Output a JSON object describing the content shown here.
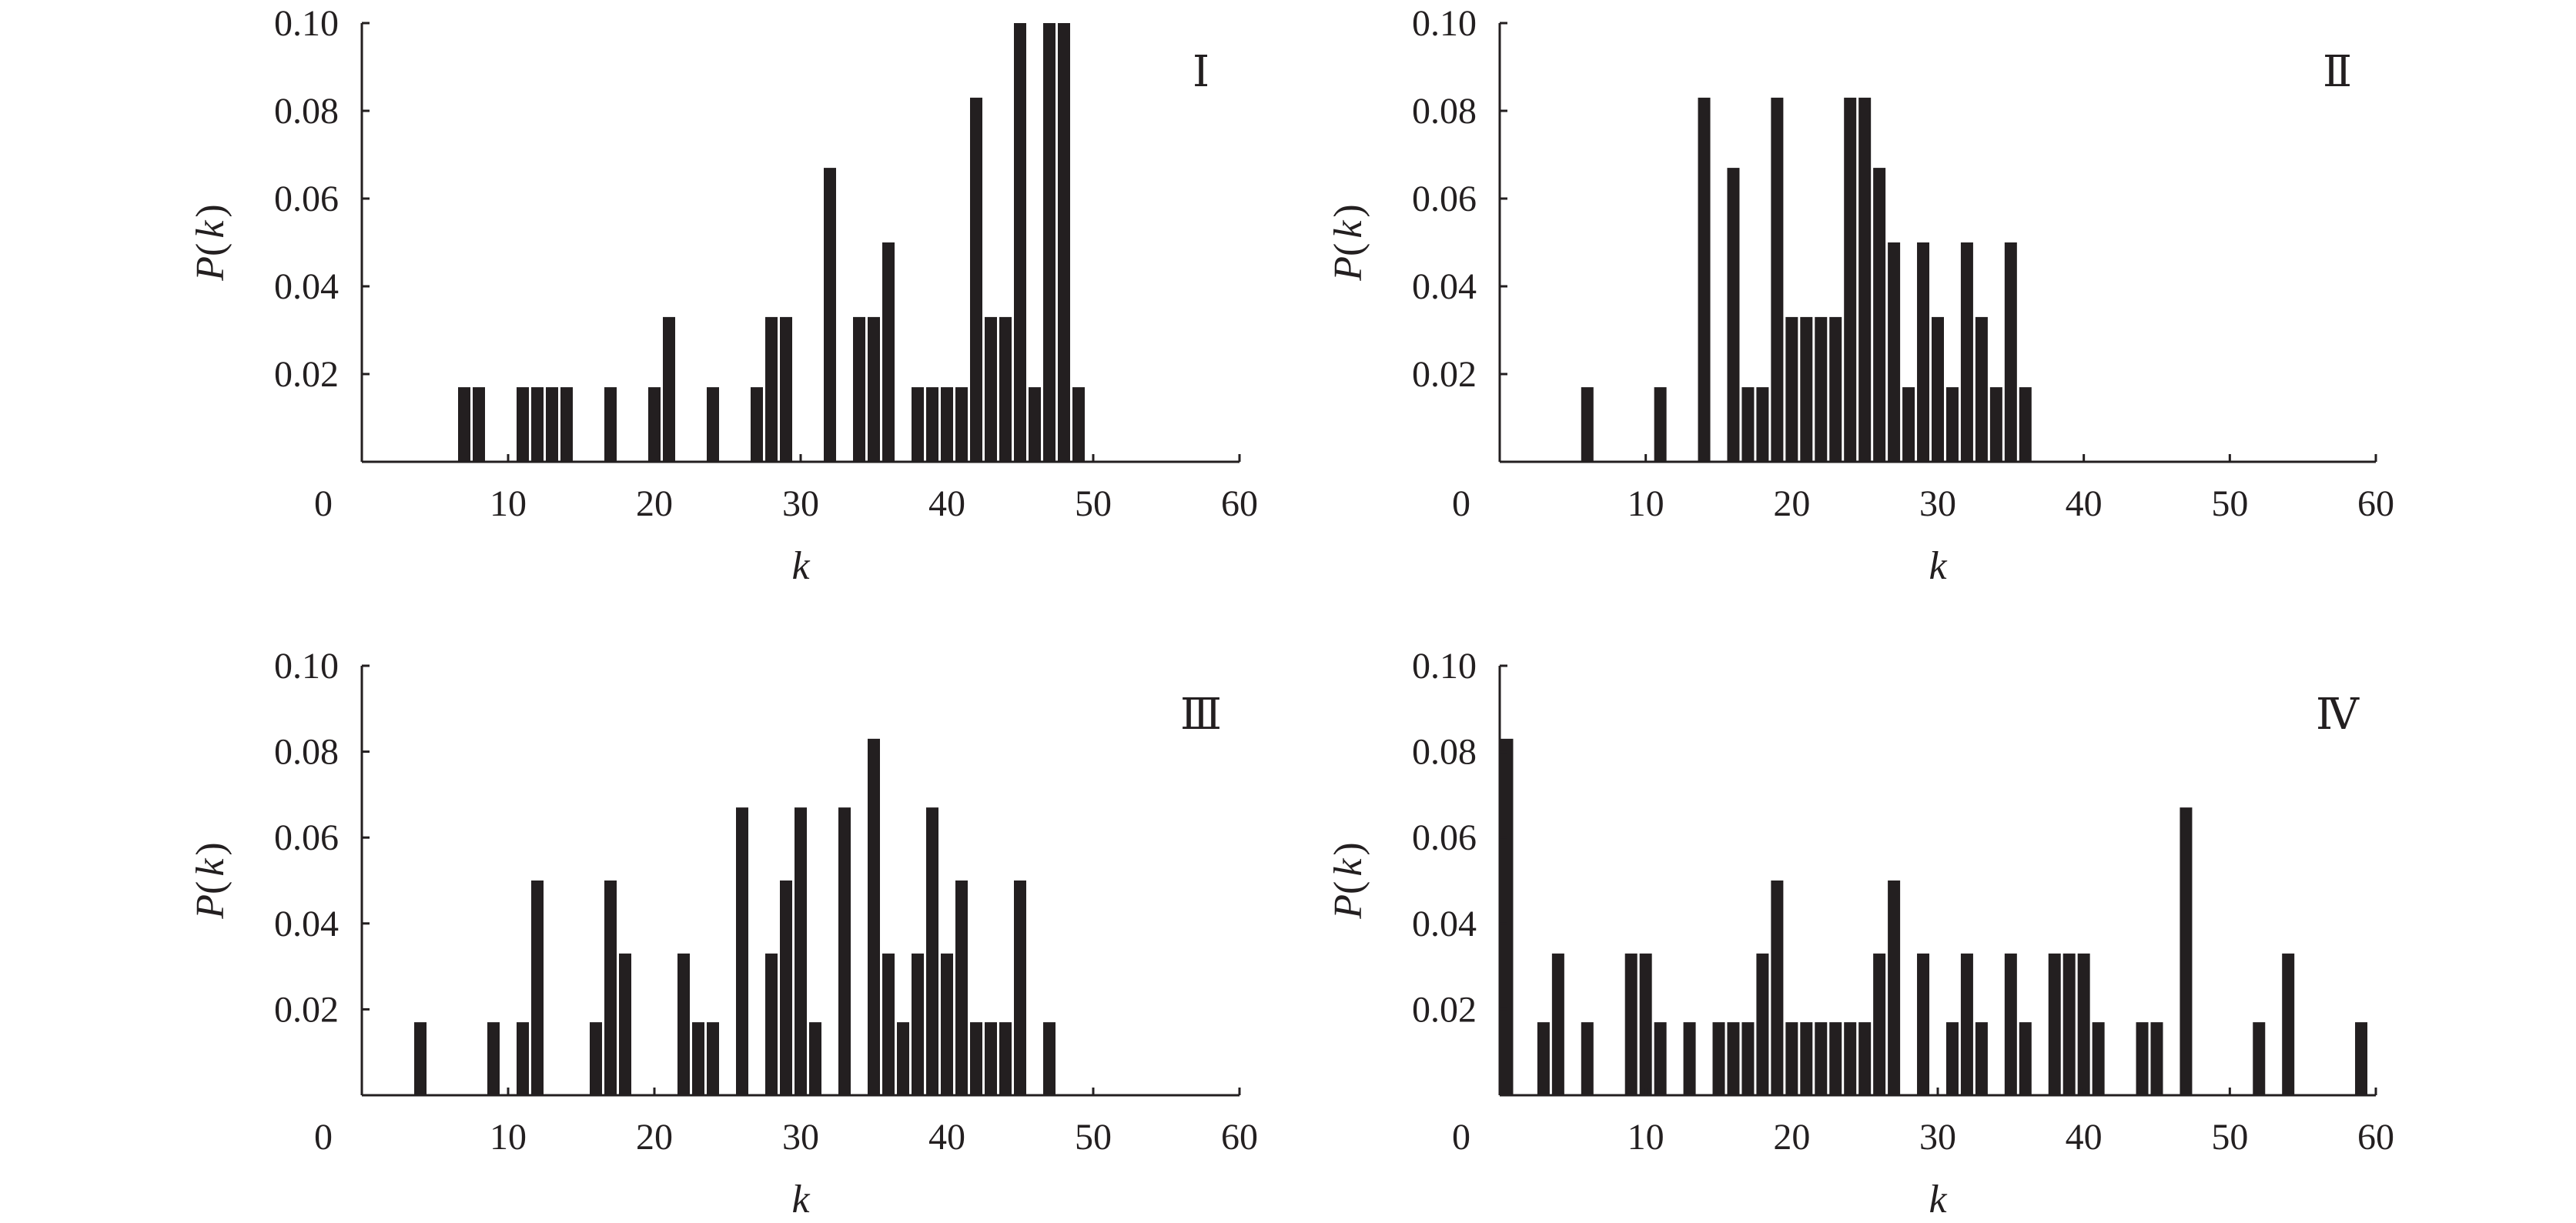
{
  "chart_data": [
    {
      "type": "bar",
      "panel_label": "Ⅰ",
      "xlabel": "k",
      "ylabel": {
        "P": "P",
        "open": "(",
        "k": "k",
        "close": ")"
      },
      "xlim": [
        0,
        60
      ],
      "ylim": [
        0,
        0.1
      ],
      "xticks": [
        "0",
        "10",
        "20",
        "30",
        "40",
        "50",
        "60"
      ],
      "yticks": [
        "0.02",
        "0.04",
        "0.06",
        "0.08",
        "0.10"
      ],
      "x": [
        7,
        8,
        11,
        12,
        13,
        14,
        17,
        20,
        21,
        24,
        27,
        28,
        29,
        32,
        34,
        35,
        36,
        38,
        39,
        40,
        41,
        42,
        43,
        44,
        45,
        46,
        47,
        48,
        49
      ],
      "values": [
        0.017,
        0.017,
        0.017,
        0.017,
        0.017,
        0.017,
        0.017,
        0.017,
        0.033,
        0.017,
        0.017,
        0.033,
        0.033,
        0.067,
        0.033,
        0.033,
        0.05,
        0.017,
        0.017,
        0.017,
        0.017,
        0.083,
        0.033,
        0.033,
        0.1,
        0.017,
        0.1,
        0.1,
        0.017
      ]
    },
    {
      "type": "bar",
      "panel_label": "Ⅱ",
      "xlabel": "k",
      "ylabel": {
        "P": "P",
        "open": "(",
        "k": "k",
        "close": ")"
      },
      "xlim": [
        0,
        60
      ],
      "ylim": [
        0,
        0.1
      ],
      "xticks": [
        "0",
        "10",
        "20",
        "30",
        "40",
        "50",
        "60"
      ],
      "yticks": [
        "0.02",
        "0.04",
        "0.06",
        "0.08",
        "0.10"
      ],
      "x": [
        6,
        11,
        14,
        16,
        17,
        18,
        19,
        20,
        21,
        22,
        23,
        24,
        25,
        26,
        27,
        28,
        29,
        30,
        31,
        32,
        33,
        34,
        35,
        36
      ],
      "values": [
        0.017,
        0.017,
        0.083,
        0.067,
        0.017,
        0.017,
        0.083,
        0.033,
        0.033,
        0.033,
        0.033,
        0.083,
        0.083,
        0.067,
        0.05,
        0.017,
        0.05,
        0.033,
        0.017,
        0.05,
        0.033,
        0.017,
        0.05,
        0.017
      ]
    },
    {
      "type": "bar",
      "panel_label": "Ⅲ",
      "xlabel": "k",
      "ylabel": {
        "P": "P",
        "open": "(",
        "k": "k",
        "close": ")"
      },
      "xlim": [
        0,
        60
      ],
      "ylim": [
        0,
        0.1
      ],
      "xticks": [
        "0",
        "10",
        "20",
        "30",
        "40",
        "50",
        "60"
      ],
      "yticks": [
        "0.02",
        "0.04",
        "0.06",
        "0.08",
        "0.10"
      ],
      "x": [
        4,
        9,
        11,
        12,
        16,
        17,
        18,
        22,
        23,
        24,
        26,
        28,
        29,
        30,
        31,
        33,
        35,
        36,
        37,
        38,
        39,
        40,
        41,
        42,
        43,
        44,
        45,
        47
      ],
      "values": [
        0.017,
        0.017,
        0.017,
        0.05,
        0.017,
        0.05,
        0.033,
        0.033,
        0.017,
        0.017,
        0.067,
        0.033,
        0.05,
        0.067,
        0.017,
        0.067,
        0.083,
        0.033,
        0.017,
        0.033,
        0.067,
        0.033,
        0.05,
        0.017,
        0.017,
        0.017,
        0.05,
        0.017
      ]
    },
    {
      "type": "bar",
      "panel_label": "Ⅳ",
      "xlabel": "k",
      "ylabel": {
        "P": "P",
        "open": "(",
        "k": "k",
        "close": ")"
      },
      "xlim": [
        0,
        60
      ],
      "ylim": [
        0,
        0.1
      ],
      "xticks": [
        "0",
        "10",
        "20",
        "30",
        "40",
        "50",
        "60"
      ],
      "yticks": [
        "0.02",
        "0.04",
        "0.06",
        "0.08",
        "0.10"
      ],
      "x": [
        0.5,
        3,
        4,
        6,
        9,
        10,
        11,
        13,
        15,
        16,
        17,
        18,
        19,
        20,
        21,
        22,
        23,
        24,
        25,
        26,
        27,
        29,
        31,
        32,
        33,
        35,
        36,
        38,
        39,
        40,
        41,
        44,
        45,
        47,
        52,
        54,
        59
      ],
      "values": [
        0.083,
        0.017,
        0.033,
        0.017,
        0.033,
        0.033,
        0.017,
        0.017,
        0.017,
        0.017,
        0.017,
        0.033,
        0.05,
        0.017,
        0.017,
        0.017,
        0.017,
        0.017,
        0.017,
        0.033,
        0.05,
        0.033,
        0.017,
        0.033,
        0.017,
        0.033,
        0.017,
        0.033,
        0.033,
        0.033,
        0.017,
        0.017,
        0.017,
        0.067,
        0.017,
        0.033,
        0.017
      ]
    }
  ]
}
